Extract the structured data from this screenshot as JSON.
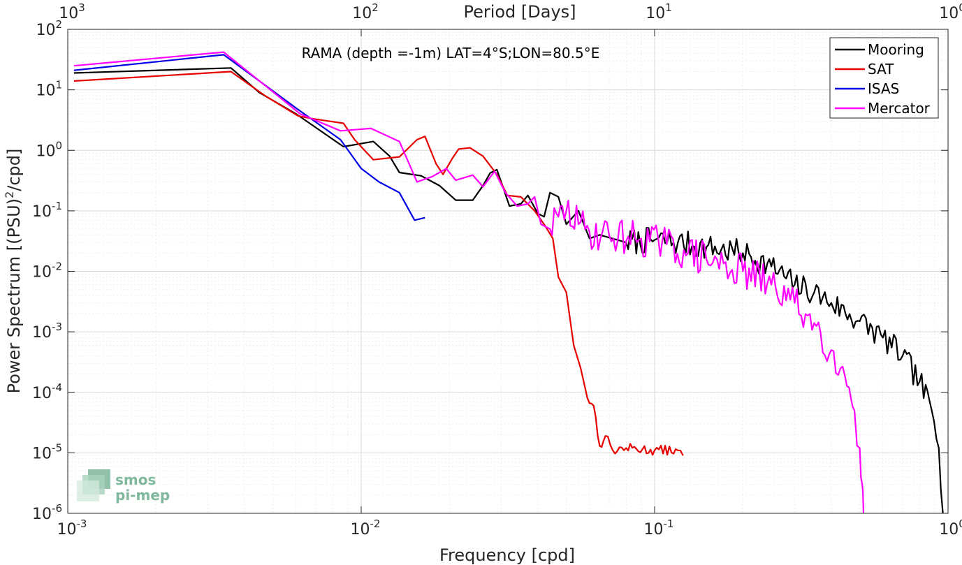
{
  "chart_data": {
    "type": "line",
    "x_scale": "log",
    "y_scale": "log",
    "xlim": [
      0.001,
      1
    ],
    "ylim": [
      1e-06,
      100
    ],
    "grid": true,
    "minor_grid": true,
    "xlabel": "Frequency [cpd]",
    "ylabel": "Power Spectrum [(PSU)²/cpd]",
    "top_axis_label": "Period [Days]",
    "annotation": "RAMA (depth =-1m) LAT=4°S;LON=80.5°E",
    "legend_position": "top-right",
    "x_ticks": [
      {
        "value": 0.001,
        "base": "10",
        "exp": "-3"
      },
      {
        "value": 0.01,
        "base": "10",
        "exp": "-2"
      },
      {
        "value": 0.1,
        "base": "10",
        "exp": "-1"
      },
      {
        "value": 1,
        "base": "10",
        "exp": "0"
      }
    ],
    "y_ticks": [
      {
        "value": 1e-06,
        "base": "10",
        "exp": "-6"
      },
      {
        "value": 1e-05,
        "base": "10",
        "exp": "-5"
      },
      {
        "value": 0.0001,
        "base": "10",
        "exp": "-4"
      },
      {
        "value": 0.001,
        "base": "10",
        "exp": "-3"
      },
      {
        "value": 0.01,
        "base": "10",
        "exp": "-2"
      },
      {
        "value": 0.1,
        "base": "10",
        "exp": "-1"
      },
      {
        "value": 1,
        "base": "10",
        "exp": "0"
      },
      {
        "value": 10,
        "base": "10",
        "exp": "1"
      },
      {
        "value": 100,
        "base": "10",
        "exp": "2"
      }
    ],
    "top_ticks": [
      {
        "freq": 0.001,
        "base": "10",
        "exp": "3"
      },
      {
        "freq": 0.01,
        "base": "10",
        "exp": "2"
      },
      {
        "freq": 0.1,
        "base": "10",
        "exp": "1"
      },
      {
        "freq": 1,
        "base": "10",
        "exp": "0"
      }
    ],
    "series": [
      {
        "name": "Mooring",
        "color": "#000000",
        "noise": {
          "from": 0.08,
          "amp": 0.22,
          "seed": 7
        },
        "points": [
          [
            0.00105,
            19
          ],
          [
            0.0036,
            23
          ],
          [
            0.0045,
            9
          ],
          [
            0.006,
            4
          ],
          [
            0.0087,
            1.15
          ],
          [
            0.011,
            1.4
          ],
          [
            0.0125,
            0.8
          ],
          [
            0.0135,
            0.43
          ],
          [
            0.016,
            0.38
          ],
          [
            0.0185,
            0.26
          ],
          [
            0.021,
            0.15
          ],
          [
            0.024,
            0.15
          ],
          [
            0.026,
            0.26
          ],
          [
            0.0275,
            0.42
          ],
          [
            0.029,
            0.48
          ],
          [
            0.03,
            0.3
          ],
          [
            0.032,
            0.12
          ],
          [
            0.035,
            0.13
          ],
          [
            0.037,
            0.18
          ],
          [
            0.04,
            0.09
          ],
          [
            0.042,
            0.08
          ],
          [
            0.044,
            0.2
          ],
          [
            0.047,
            0.17
          ],
          [
            0.05,
            0.06
          ],
          [
            0.055,
            0.1
          ],
          [
            0.06,
            0.035
          ],
          [
            0.065,
            0.04
          ],
          [
            0.08,
            0.03
          ],
          [
            0.1,
            0.033
          ],
          [
            0.12,
            0.03
          ],
          [
            0.15,
            0.025
          ],
          [
            0.2,
            0.02
          ],
          [
            0.25,
            0.012
          ],
          [
            0.3,
            0.006
          ],
          [
            0.35,
            0.0045
          ],
          [
            0.4,
            0.003
          ],
          [
            0.5,
            0.0015
          ],
          [
            0.6,
            0.0008
          ],
          [
            0.7,
            0.0004
          ],
          [
            0.8,
            0.00015
          ],
          [
            0.88,
            5e-05
          ],
          [
            0.93,
            1.2e-05
          ],
          [
            0.96,
            1e-06
          ]
        ]
      },
      {
        "name": "SAT",
        "color": "#e60000",
        "noise": {
          "from": 0.06,
          "amp": 0.08,
          "seed": 13
        },
        "points": [
          [
            0.00105,
            14
          ],
          [
            0.0036,
            20
          ],
          [
            0.0047,
            8
          ],
          [
            0.0061,
            3.7
          ],
          [
            0.0069,
            3.3
          ],
          [
            0.0087,
            2.8
          ],
          [
            0.0095,
            1.5
          ],
          [
            0.011,
            0.7
          ],
          [
            0.0135,
            0.78
          ],
          [
            0.0155,
            1.5
          ],
          [
            0.0165,
            1.7
          ],
          [
            0.018,
            0.6
          ],
          [
            0.019,
            0.4
          ],
          [
            0.0205,
            0.75
          ],
          [
            0.0215,
            1.05
          ],
          [
            0.0235,
            1.1
          ],
          [
            0.026,
            0.8
          ],
          [
            0.029,
            0.4
          ],
          [
            0.0315,
            0.18
          ],
          [
            0.035,
            0.17
          ],
          [
            0.039,
            0.1
          ],
          [
            0.042,
            0.06
          ],
          [
            0.045,
            0.035
          ],
          [
            0.047,
            0.008
          ],
          [
            0.05,
            0.0045
          ],
          [
            0.053,
            0.0006
          ],
          [
            0.056,
            0.00025
          ],
          [
            0.059,
            8e-05
          ],
          [
            0.062,
            6e-05
          ],
          [
            0.065,
            1.3e-05
          ],
          [
            0.068,
            1.9e-05
          ],
          [
            0.072,
            1.1e-05
          ],
          [
            0.08,
            1.2e-05
          ],
          [
            0.1,
            1.1e-05
          ],
          [
            0.12,
            1.1e-05
          ],
          [
            0.125,
            9e-06
          ]
        ]
      },
      {
        "name": "ISAS",
        "color": "#0000e6",
        "points": [
          [
            0.00105,
            21
          ],
          [
            0.0034,
            38
          ],
          [
            0.006,
            5
          ],
          [
            0.0085,
            1.5
          ],
          [
            0.01,
            0.5
          ],
          [
            0.0115,
            0.3
          ],
          [
            0.0135,
            0.2
          ],
          [
            0.0152,
            0.07
          ],
          [
            0.0165,
            0.077
          ]
        ]
      },
      {
        "name": "Mercator",
        "color": "#ff00ff",
        "noise": {
          "from": 0.045,
          "amp": 0.3,
          "seed": 29
        },
        "points": [
          [
            0.00105,
            25
          ],
          [
            0.0034,
            42
          ],
          [
            0.0062,
            4
          ],
          [
            0.0085,
            2.1
          ],
          [
            0.0108,
            2.3
          ],
          [
            0.0135,
            1.4
          ],
          [
            0.0155,
            0.3
          ],
          [
            0.0175,
            0.37
          ],
          [
            0.0195,
            0.5
          ],
          [
            0.021,
            0.32
          ],
          [
            0.024,
            0.39
          ],
          [
            0.026,
            0.25
          ],
          [
            0.0285,
            0.45
          ],
          [
            0.031,
            0.2
          ],
          [
            0.034,
            0.12
          ],
          [
            0.037,
            0.13
          ],
          [
            0.039,
            0.17
          ],
          [
            0.041,
            0.06
          ],
          [
            0.044,
            0.05
          ],
          [
            0.047,
            0.08
          ],
          [
            0.05,
            0.1
          ],
          [
            0.055,
            0.06
          ],
          [
            0.06,
            0.045
          ],
          [
            0.07,
            0.04
          ],
          [
            0.09,
            0.035
          ],
          [
            0.11,
            0.028
          ],
          [
            0.13,
            0.02
          ],
          [
            0.15,
            0.016
          ],
          [
            0.2,
            0.01
          ],
          [
            0.25,
            0.006
          ],
          [
            0.3,
            0.003
          ],
          [
            0.35,
            0.0014
          ],
          [
            0.4,
            0.0005
          ],
          [
            0.43,
            0.00025
          ],
          [
            0.46,
            0.00012
          ],
          [
            0.48,
            5e-05
          ],
          [
            0.5,
            1.2e-05
          ],
          [
            0.51,
            3e-06
          ],
          [
            0.515,
            1e-06
          ]
        ]
      }
    ]
  },
  "logo": {
    "line1": "smos",
    "line2": "pi-mep"
  }
}
